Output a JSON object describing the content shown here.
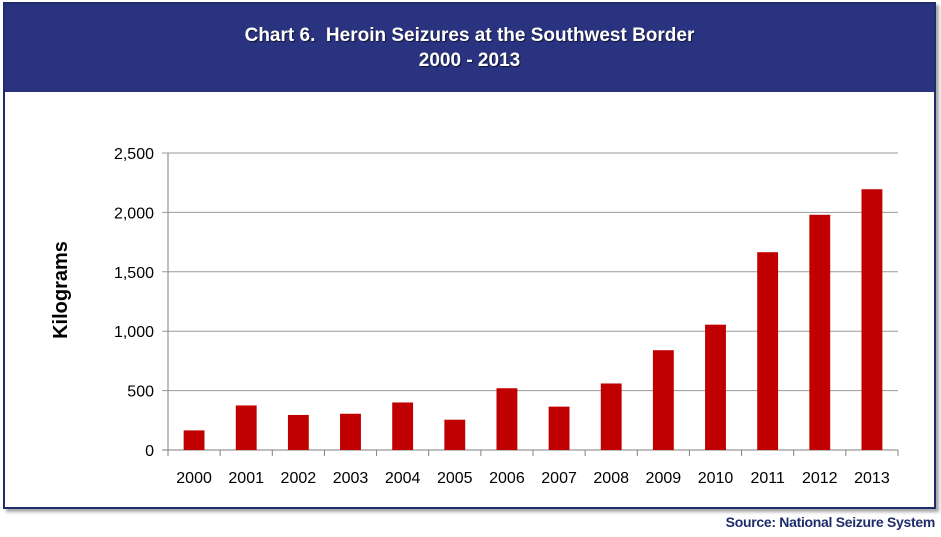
{
  "header": {
    "title": "Chart 6.  Heroin Seizures at the Southwest Border",
    "subtitle": "2000 - 2013"
  },
  "source": "Source:  National Seizure System",
  "colors": {
    "bar": "#c00000",
    "header": "#2a3380",
    "grid": "#9a9a9a"
  },
  "chart_data": {
    "type": "bar",
    "title": "Chart 6.  Heroin Seizures at the Southwest Border",
    "subtitle": "2000 - 2013",
    "xlabel": "",
    "ylabel": "Kilograms",
    "categories": [
      "2000",
      "2001",
      "2002",
      "2003",
      "2004",
      "2005",
      "2006",
      "2007",
      "2008",
      "2009",
      "2010",
      "2011",
      "2012",
      "2013"
    ],
    "values": [
      165,
      375,
      295,
      305,
      400,
      255,
      520,
      365,
      560,
      840,
      1055,
      1665,
      1980,
      2195
    ],
    "ylim": [
      0,
      2500
    ],
    "yticks": [
      0,
      500,
      1000,
      1500,
      2000,
      2500
    ],
    "ytick_labels": [
      "0",
      "500",
      "1,000",
      "1,500",
      "2,000",
      "2,500"
    ],
    "grid": true,
    "legend": "none"
  }
}
